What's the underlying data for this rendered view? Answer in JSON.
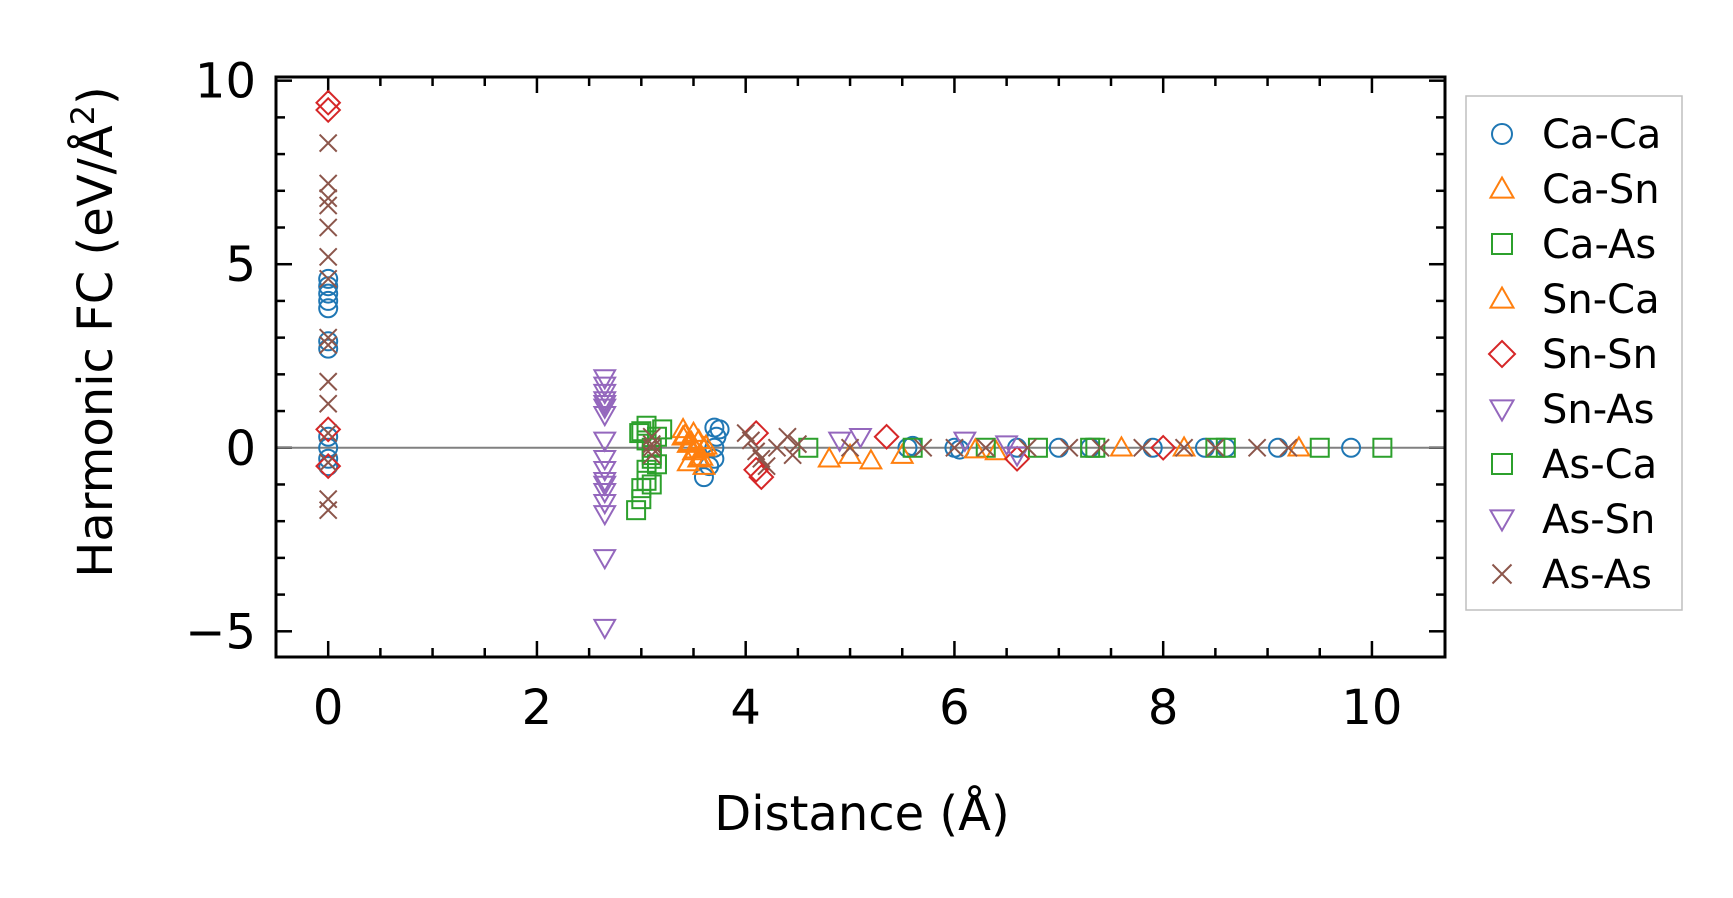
{
  "chart_data": {
    "type": "scatter",
    "xlabel": "Distance (Å)",
    "ylabel": "Harmonic FC (eV/Å²)",
    "ylabel_main": "Harmonic FC (eV/Å",
    "ylabel_sup": "2",
    "ylabel_end": ")",
    "xlim": [
      -0.5,
      10.7
    ],
    "ylim": [
      -5.7,
      10.1
    ],
    "xticks": [
      0,
      2,
      4,
      6,
      8,
      10
    ],
    "xtick_labels": [
      "0",
      "2",
      "4",
      "6",
      "8",
      "10"
    ],
    "yticks": [
      -5,
      0,
      5,
      10
    ],
    "ytick_labels": [
      "−5",
      "0",
      "5",
      "10"
    ],
    "grid": false,
    "reference_line_y": 0,
    "legend_position": "right",
    "series": [
      {
        "name": "Ca-Ca",
        "marker": "circle",
        "color": "#1f77b4",
        "x": [
          0,
          0,
          0,
          0,
          0,
          0,
          0,
          0,
          0,
          0,
          0,
          3.6,
          3.65,
          3.7,
          3.7,
          3.72,
          3.75,
          3.7,
          5.55,
          5.6,
          6.0,
          6.05,
          6.6,
          7.0,
          7.3,
          7.9,
          8.4,
          8.6,
          9.1,
          9.8
        ],
        "y": [
          4.6,
          4.4,
          4.2,
          4.0,
          3.8,
          2.9,
          2.7,
          0.3,
          0.0,
          -0.3,
          -0.5,
          -0.8,
          -0.5,
          -0.3,
          0.0,
          0.3,
          0.5,
          0.55,
          0.0,
          0.05,
          0.0,
          -0.05,
          0.0,
          0.0,
          0.0,
          0.0,
          0.0,
          0.0,
          0.0,
          0.0
        ]
      },
      {
        "name": "Ca-Sn",
        "marker": "triangle-up",
        "color": "#ff7f0e",
        "x": [
          3.4,
          3.45,
          3.5,
          3.55,
          3.6,
          3.4,
          3.5,
          3.55,
          3.6,
          3.45,
          4.8,
          5.2,
          5.5,
          6.4,
          7.6,
          9.3
        ],
        "y": [
          0.3,
          0.1,
          -0.1,
          -0.3,
          -0.5,
          0.5,
          0.4,
          0.2,
          0.0,
          -0.4,
          -0.3,
          -0.35,
          -0.2,
          -0.1,
          0.0,
          0.0
        ]
      },
      {
        "name": "Ca-As",
        "marker": "square",
        "color": "#2ca02c",
        "x": [
          2.95,
          3.0,
          3.0,
          3.05,
          3.05,
          3.1,
          3.1,
          3.15,
          3.2,
          3.05,
          3.1,
          2.98,
          4.6,
          5.6,
          6.3,
          6.8,
          7.35,
          8.6,
          9.5,
          10.1
        ],
        "y": [
          -1.7,
          -1.4,
          -1.1,
          -0.9,
          -0.6,
          -0.3,
          0.0,
          0.3,
          0.5,
          0.6,
          -1.0,
          0.4,
          0.0,
          0.0,
          0.0,
          0.0,
          0.0,
          0.0,
          0.0,
          0.0
        ]
      },
      {
        "name": "Sn-Ca",
        "marker": "triangle-up",
        "color": "#ff7f0e",
        "x": [
          3.42,
          3.48,
          3.52,
          3.58,
          3.62,
          5.0,
          6.2,
          8.2
        ],
        "y": [
          0.35,
          0.15,
          -0.05,
          -0.25,
          0.05,
          -0.2,
          -0.05,
          0.0
        ]
      },
      {
        "name": "Sn-Sn",
        "marker": "diamond",
        "color": "#d62728",
        "x": [
          0,
          0,
          0,
          0,
          4.1,
          4.1,
          4.15,
          5.35,
          6.6,
          8.0
        ],
        "y": [
          9.4,
          9.2,
          0.5,
          -0.5,
          0.4,
          -0.6,
          -0.8,
          0.3,
          -0.3,
          0.0
        ]
      },
      {
        "name": "Sn-As",
        "marker": "triangle-down",
        "color": "#9467bd",
        "x": [
          2.65,
          2.65,
          2.65,
          2.65,
          2.65,
          2.65,
          2.65,
          2.65,
          2.65,
          2.65,
          2.65,
          2.65,
          2.65,
          2.65,
          2.65,
          4.9,
          5.1,
          6.1,
          6.5
        ],
        "y": [
          1.9,
          1.7,
          1.5,
          1.3,
          1.1,
          0.9,
          0.2,
          -0.3,
          -0.6,
          -0.9,
          -1.2,
          -1.5,
          -1.8,
          -3.0,
          -4.9,
          0.2,
          0.3,
          0.2,
          0.1
        ]
      },
      {
        "name": "As-Ca",
        "marker": "square",
        "color": "#2ca02c",
        "x": [
          3.0,
          3.05,
          3.1,
          3.15,
          7.3,
          8.5
        ],
        "y": [
          0.45,
          0.2,
          -0.2,
          -0.45,
          0.0,
          0.0
        ]
      },
      {
        "name": "As-Sn",
        "marker": "triangle-down",
        "color": "#9467bd",
        "x": [
          2.65,
          2.65,
          6.6
        ],
        "y": [
          1.2,
          -1.0,
          -0.2
        ]
      },
      {
        "name": "As-As",
        "marker": "x",
        "color": "#8c564b",
        "x": [
          0,
          0,
          0,
          0,
          0,
          0,
          0,
          0,
          0,
          0,
          0,
          0,
          0,
          0,
          0,
          3.1,
          3.1,
          3.1,
          3.1,
          4.0,
          4.05,
          4.1,
          4.15,
          4.2,
          4.3,
          4.4,
          4.5,
          4.45,
          5.0,
          5.7,
          6.0,
          6.3,
          6.7,
          7.1,
          7.4,
          7.8,
          8.2,
          8.5,
          8.9,
          9.2
        ],
        "y": [
          8.3,
          7.2,
          6.8,
          6.6,
          6.0,
          5.2,
          4.6,
          3.0,
          2.8,
          1.8,
          1.2,
          -1.4,
          -1.7,
          -0.4,
          0.4,
          0.3,
          0.0,
          -0.2,
          0.1,
          0.4,
          0.2,
          -0.1,
          -0.3,
          -0.5,
          0.0,
          0.3,
          0.1,
          -0.2,
          0.0,
          0.0,
          0.0,
          0.0,
          0.0,
          0.0,
          0.0,
          0.0,
          0.0,
          0.0,
          0.0,
          0.0
        ]
      }
    ]
  }
}
